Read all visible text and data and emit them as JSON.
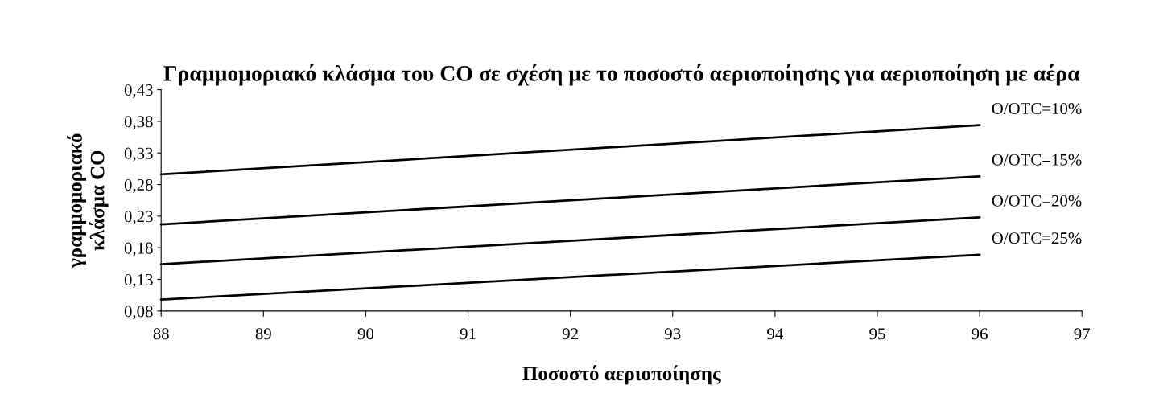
{
  "chart_data": {
    "type": "line",
    "title": "Γραμμομοριακό κλάσμα του CO σε σχέση με το ποσοστό αεριοποίησης για αεριοποίηση με αέρα",
    "xlabel": "Ποσοστό αεριοποίησης",
    "ylabel": "γραμμομοριακό\nκλάσμα CO",
    "x": [
      88,
      96
    ],
    "series": [
      {
        "name": "O/OTC=10%",
        "color": "#000000",
        "values": [
          0.296,
          0.374
        ]
      },
      {
        "name": "O/OTC=15%",
        "color": "#000000",
        "values": [
          0.217,
          0.293
        ]
      },
      {
        "name": "O/OTC=20%",
        "color": "#000000",
        "values": [
          0.154,
          0.228
        ]
      },
      {
        "name": "O/OTC=25%",
        "color": "#000000",
        "values": [
          0.098,
          0.169
        ]
      }
    ],
    "xlim": [
      88,
      97
    ],
    "xticks": [
      88,
      89,
      90,
      91,
      92,
      93,
      94,
      95,
      96,
      97
    ],
    "ylim": [
      0.08,
      0.43
    ],
    "yticks": [
      {
        "value": 0.08,
        "label": "0,08"
      },
      {
        "value": 0.13,
        "label": "0,13"
      },
      {
        "value": 0.18,
        "label": "0,18"
      },
      {
        "value": 0.23,
        "label": "0,23"
      },
      {
        "value": 0.28,
        "label": "0,28"
      },
      {
        "value": 0.33,
        "label": "0,33"
      },
      {
        "value": 0.38,
        "label": "0,38"
      },
      {
        "value": 0.43,
        "label": "0,43"
      }
    ],
    "grid": false,
    "legend": false,
    "marker": "none",
    "line_style": "solid"
  }
}
